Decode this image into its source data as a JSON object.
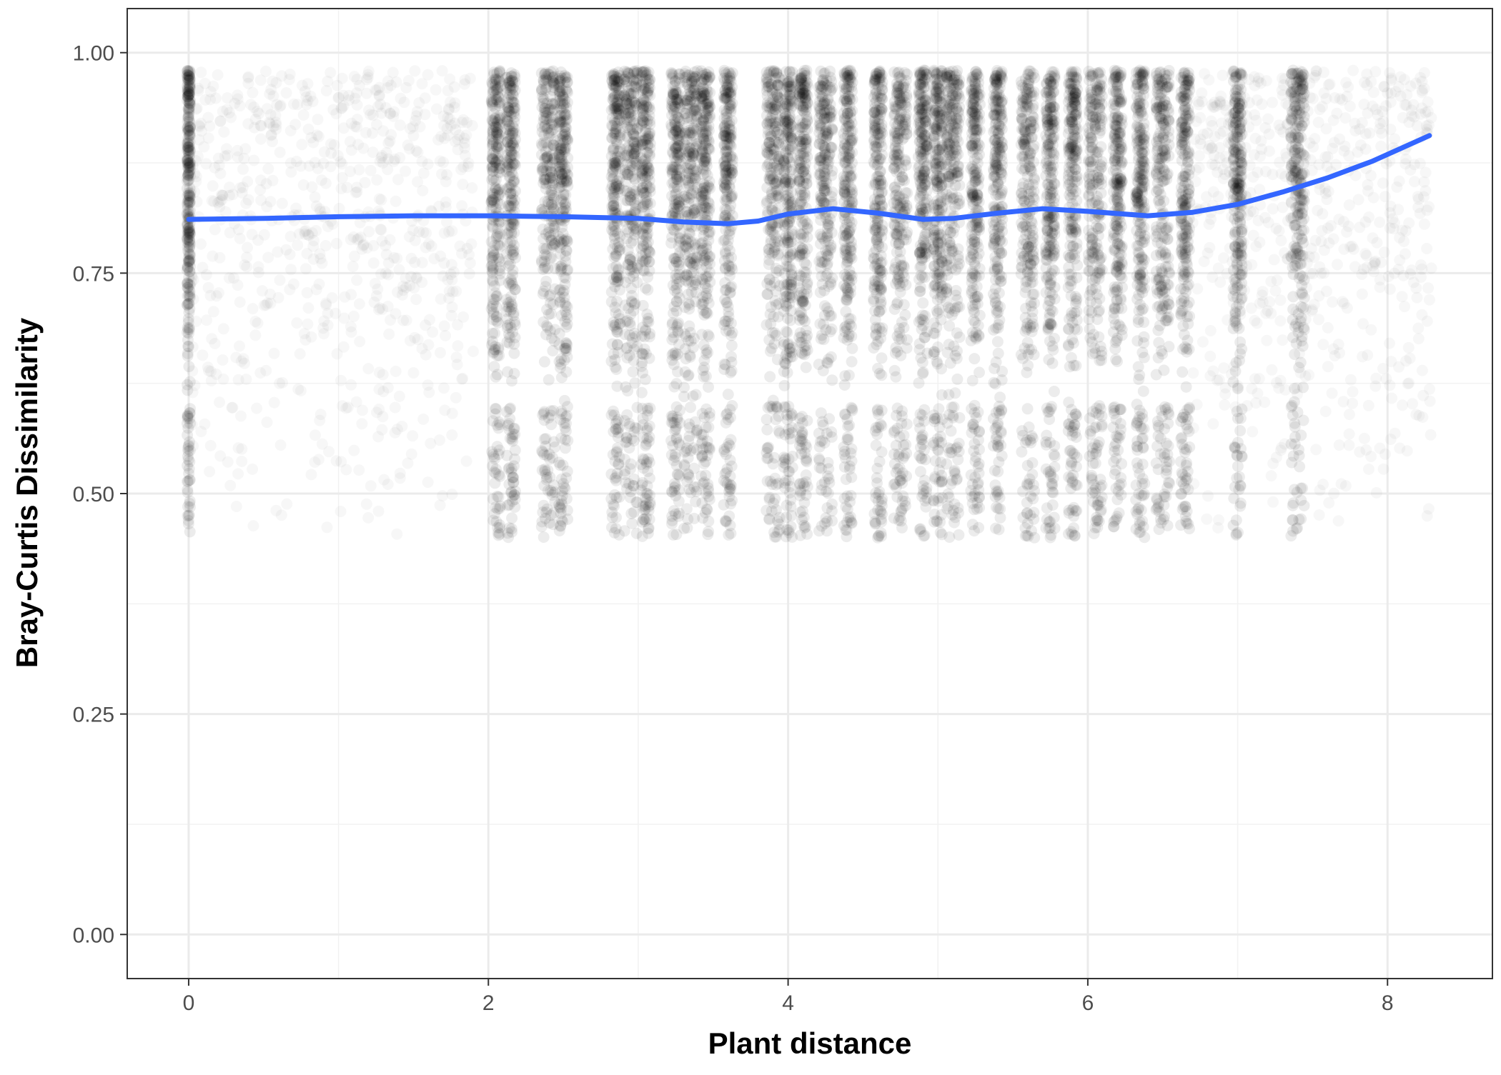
{
  "chart_data": {
    "type": "scatter",
    "xlabel": "Plant distance",
    "ylabel": "Bray-Curtis Dissimilarity",
    "xlim": [
      -0.41,
      8.7
    ],
    "ylim": [
      -0.05,
      1.05
    ],
    "x_ticks": [
      0,
      2,
      4,
      6,
      8
    ],
    "x_tick_labels": [
      "0",
      "2",
      "4",
      "6",
      "8"
    ],
    "y_ticks": [
      0.0,
      0.25,
      0.5,
      0.75,
      1.0
    ],
    "y_tick_labels": [
      "0.00",
      "0.25",
      "0.50",
      "0.75",
      "1.00"
    ],
    "grid": true,
    "legend": "none",
    "colors": {
      "points": "#000000",
      "smooth_line": "#3366ff",
      "grid_major": "#ebebeb",
      "grid_minor": "#f2f2f2",
      "panel_border": "#333333"
    },
    "point_series": {
      "point_alpha": 0.03,
      "y_range": [
        0.42,
        0.98
      ],
      "dense_bands_x": [
        0.0,
        2.05,
        2.15,
        2.4,
        2.5,
        2.85,
        2.95,
        3.05,
        3.25,
        3.35,
        3.45,
        3.6,
        3.9,
        4.0,
        4.1,
        4.25,
        4.4,
        4.6,
        4.75,
        4.9,
        5.0,
        5.1,
        5.25,
        5.4,
        5.6,
        5.75,
        5.9,
        6.05,
        6.2,
        6.35,
        6.5,
        6.65,
        7.0,
        7.4
      ],
      "sparse_ranges_x": [
        [
          0.0,
          1.9
        ],
        [
          6.7,
          8.3
        ]
      ]
    },
    "series": [
      {
        "type": "smooth",
        "x": [
          0.0,
          0.5,
          1.0,
          1.5,
          2.0,
          2.5,
          3.0,
          3.3,
          3.6,
          3.8,
          4.0,
          4.3,
          4.6,
          4.9,
          5.1,
          5.4,
          5.7,
          6.0,
          6.4,
          6.7,
          7.0,
          7.3,
          7.6,
          7.9,
          8.28
        ],
        "y": [
          0.811,
          0.812,
          0.814,
          0.815,
          0.815,
          0.814,
          0.812,
          0.808,
          0.806,
          0.809,
          0.817,
          0.823,
          0.818,
          0.811,
          0.812,
          0.818,
          0.823,
          0.82,
          0.815,
          0.819,
          0.828,
          0.842,
          0.858,
          0.877,
          0.906
        ]
      }
    ]
  }
}
